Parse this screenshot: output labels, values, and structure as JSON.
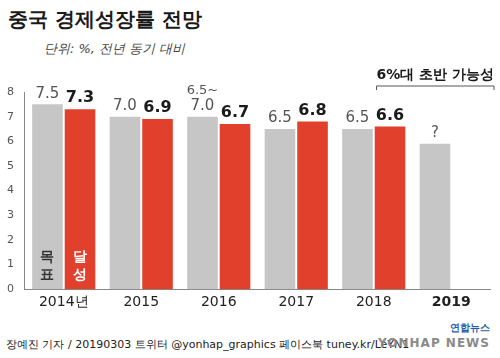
{
  "chart_data": {
    "type": "bar",
    "title": "중국 경제성장률 전망",
    "subtitle": "단위: %, 전년 동기 대비",
    "categories": [
      "2014년",
      "2015",
      "2016",
      "2017",
      "2018",
      "2019"
    ],
    "series": [
      {
        "name": "목표",
        "color": "#c6c6c6",
        "values": [
          7.5,
          7.0,
          7.0,
          6.5,
          6.5,
          5.9
        ],
        "value_labels": [
          "7.5",
          "7.0",
          "6.5~7.0",
          "6.5",
          "6.5",
          "?"
        ]
      },
      {
        "name": "달성",
        "color": "#e0402c",
        "values": [
          7.3,
          6.9,
          6.7,
          6.8,
          6.6,
          null
        ]
      }
    ],
    "annotations": [
      {
        "text": "6%대 초반 가능성",
        "category": "2019"
      }
    ],
    "ylim": [
      0,
      8
    ],
    "yticks": [
      0,
      1,
      2,
      3,
      4,
      5,
      6,
      7,
      8
    ],
    "grid": false,
    "data_labels": true
  },
  "footer": "장예진 기자 / 20190303 트위터 @yonhap_graphics 페이스북 tuney.kr/LeYN1",
  "logo": [
    "연합뉴스",
    "YONHAP NEWS"
  ]
}
